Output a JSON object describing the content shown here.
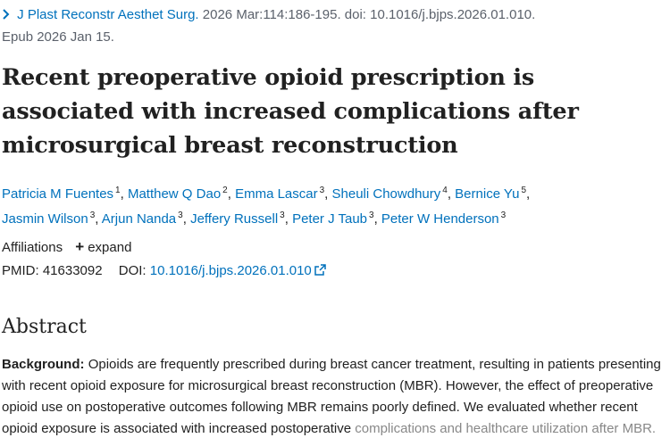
{
  "citation": {
    "journal": "J Plast Reconstr Aesthet Surg.",
    "details": "2026 Mar:114:186-195. doi: 10.1016/j.bjps.2026.01.010.",
    "epub": "Epub 2026 Jan 15."
  },
  "article": {
    "title": "Recent preoperative opioid prescription is associated with increased complications after microsurgical breast reconstruction"
  },
  "authors": [
    {
      "name": "Patricia M Fuentes",
      "aff": "1"
    },
    {
      "name": "Matthew Q Dao",
      "aff": "2"
    },
    {
      "name": "Emma Lascar",
      "aff": "3"
    },
    {
      "name": "Sheuli Chowdhury",
      "aff": "4"
    },
    {
      "name": "Bernice Yu",
      "aff": "5"
    },
    {
      "name": "Jasmin Wilson",
      "aff": "3"
    },
    {
      "name": "Arjun Nanda",
      "aff": "3"
    },
    {
      "name": "Jeffery Russell",
      "aff": "3"
    },
    {
      "name": "Peter J Taub",
      "aff": "3"
    },
    {
      "name": "Peter W Henderson",
      "aff": "3"
    }
  ],
  "affiliations": {
    "label": "Affiliations",
    "expand_label": "expand"
  },
  "identifiers": {
    "pmid_label": "PMID:",
    "pmid": "41633092",
    "doi_label": "DOI:",
    "doi": "10.1016/j.bjps.2026.01.010"
  },
  "abstract": {
    "heading": "Abstract",
    "background_label": "Background:",
    "background_text": "Opioids are frequently prescribed during breast cancer treatment, resulting in patients presenting with recent opioid exposure for microsurgical breast reconstruction (MBR). However, the effect of preoperative opioid use on postoperative outcomes following MBR remains poorly defined. We evaluated whether recent opioid exposure is associated with increased postoperative",
    "faded_text": "complications and healthcare utilization after MBR."
  }
}
